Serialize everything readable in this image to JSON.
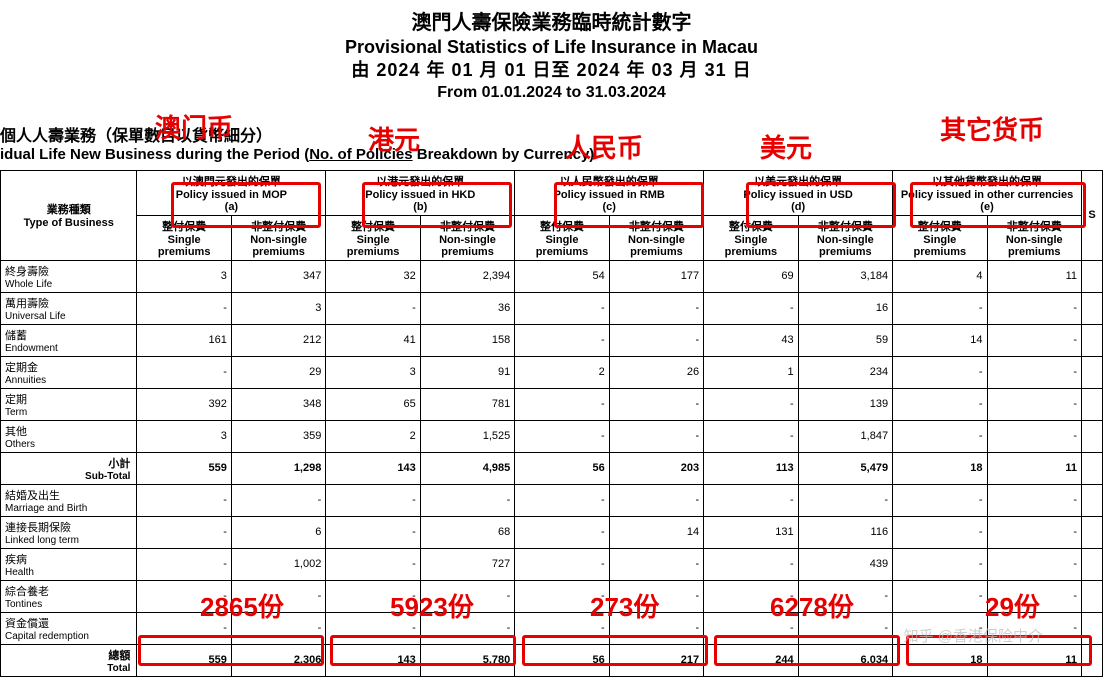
{
  "title": {
    "zh1": "澳門人壽保險業務臨時統計數字",
    "en1": "Provisional Statistics of Life Insurance in Macau",
    "zh2": "由 2024 年 01 月 01 日至 2024 年 03 月 31 日",
    "en2": "From 01.01.2024 to 31.03.2024"
  },
  "subtitle": {
    "zh": "個人人壽業務（保單數目以貨幣細分）",
    "en_pre": "idual Life New Business during the Period (",
    "en_und": "No. of Policies",
    "en_post": " Breakdown by Currency)"
  },
  "header": {
    "type_zh": "業務種類",
    "type_en": "Type of Business",
    "cols": [
      {
        "zh": "以澳門元發出的保單",
        "en": "Policy issued in MOP",
        "tag": "(a)"
      },
      {
        "zh": "以港元發出的保單",
        "en": "Policy issued in HKD",
        "tag": "(b)"
      },
      {
        "zh": "以人民幣發出的保單",
        "en": "Policy issued in RMB",
        "tag": "(c)"
      },
      {
        "zh": "以美元發出的保單",
        "en": "Policy issued in USD",
        "tag": "(d)"
      },
      {
        "zh": "以其他貨幣發出的保單",
        "en": "Policy issued in other currencies",
        "tag": "(e)"
      }
    ],
    "sub": {
      "sp_zh": "整付保費",
      "sp_en": "Single premiums",
      "np_zh": "非整付保費",
      "np_en": "Non-single premiums"
    }
  },
  "rows": [
    {
      "zh": "終身壽險",
      "en": "Whole Life",
      "v": [
        "3",
        "347",
        "32",
        "2,394",
        "54",
        "177",
        "69",
        "3,184",
        "4",
        "11"
      ]
    },
    {
      "zh": "萬用壽險",
      "en": "Universal Life",
      "v": [
        "-",
        "3",
        "-",
        "36",
        "-",
        "-",
        "-",
        "16",
        "-",
        "-"
      ]
    },
    {
      "zh": "儲蓄",
      "en": "Endowment",
      "v": [
        "161",
        "212",
        "41",
        "158",
        "-",
        "-",
        "43",
        "59",
        "14",
        "-"
      ]
    },
    {
      "zh": "定期金",
      "en": "Annuities",
      "v": [
        "-",
        "29",
        "3",
        "91",
        "2",
        "26",
        "1",
        "234",
        "-",
        "-"
      ]
    },
    {
      "zh": "定期",
      "en": "Term",
      "v": [
        "392",
        "348",
        "65",
        "781",
        "-",
        "-",
        "-",
        "139",
        "-",
        "-"
      ]
    },
    {
      "zh": "其他",
      "en": "Others",
      "v": [
        "3",
        "359",
        "2",
        "1,525",
        "-",
        "-",
        "-",
        "1,847",
        "-",
        "-"
      ]
    }
  ],
  "subtotal": {
    "zh": "小計",
    "en": "Sub-Total",
    "v": [
      "559",
      "1,298",
      "143",
      "4,985",
      "56",
      "203",
      "113",
      "5,479",
      "18",
      "11"
    ]
  },
  "rows2": [
    {
      "zh": "結婚及出生",
      "en": "Marriage and Birth",
      "v": [
        "-",
        "-",
        "-",
        "-",
        "-",
        "-",
        "-",
        "-",
        "-",
        "-"
      ]
    },
    {
      "zh": "連接長期保險",
      "en": "Linked long term",
      "v": [
        "-",
        "6",
        "-",
        "68",
        "-",
        "14",
        "131",
        "116",
        "-",
        "-"
      ]
    },
    {
      "zh": "疾病",
      "en": "Health",
      "v": [
        "-",
        "1,002",
        "-",
        "727",
        "-",
        "-",
        "-",
        "439",
        "-",
        "-"
      ]
    },
    {
      "zh": "綜合養老",
      "en": "Tontines",
      "v": [
        "-",
        "-",
        "-",
        "-",
        "-",
        "-",
        "-",
        "-",
        "-",
        "-"
      ]
    },
    {
      "zh": "資金償還",
      "en": "Capital redemption",
      "v": [
        "-",
        "-",
        "-",
        "-",
        "-",
        "-",
        "-",
        "-",
        "-",
        "-"
      ]
    }
  ],
  "total": {
    "zh": "總額",
    "en": "Total",
    "v": [
      "559",
      "2,306",
      "143",
      "5,780",
      "56",
      "217",
      "244",
      "6,034",
      "18",
      "11"
    ]
  },
  "annot": {
    "labels_top": [
      "澳门币",
      "港元",
      "人民币",
      "美元",
      "其它货币"
    ],
    "labels_bot": [
      "2865份",
      "5923份",
      "273份",
      "6278份",
      "29份"
    ]
  },
  "watermark": "知乎  @香港保险中介",
  "colors": {
    "red": "#e60000"
  }
}
